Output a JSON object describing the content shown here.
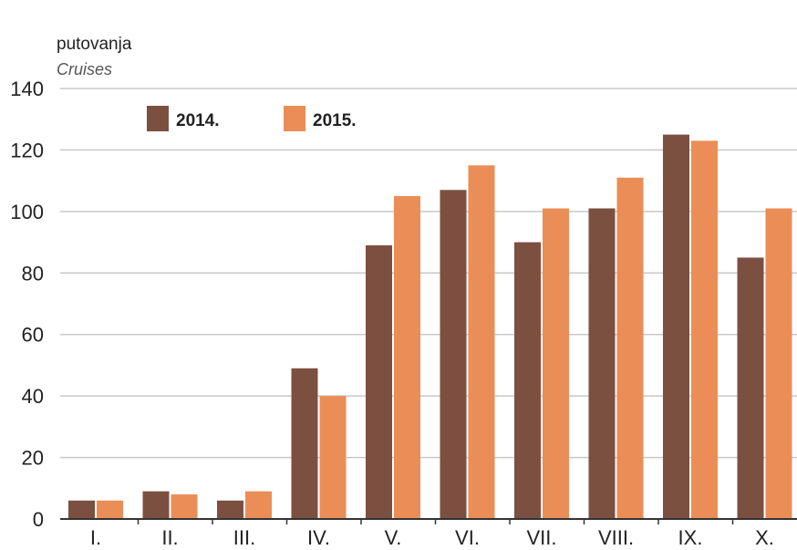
{
  "chart_data": {
    "type": "bar",
    "ylabel": "putovanja",
    "ylabel_en": "Cruises",
    "categories": [
      "I.",
      "II.",
      "III.",
      "IV.",
      "V.",
      "VI.",
      "VII.",
      "VIII.",
      "IX.",
      "X."
    ],
    "series": [
      {
        "name": "2014.",
        "color": "#7b5040",
        "values": [
          6,
          9,
          6,
          49,
          89,
          107,
          90,
          101,
          125,
          85
        ]
      },
      {
        "name": "2015.",
        "color": "#eb8d57",
        "values": [
          6,
          8,
          9,
          40,
          105,
          115,
          101,
          111,
          123,
          101
        ]
      }
    ],
    "ylim": [
      0,
      140
    ],
    "yticks": [
      0,
      20,
      40,
      60,
      80,
      100,
      120,
      140
    ],
    "grid": true,
    "legend_position": "top-left"
  },
  "colors": {
    "grid": "#c8c8c8",
    "axis": "#333333"
  }
}
